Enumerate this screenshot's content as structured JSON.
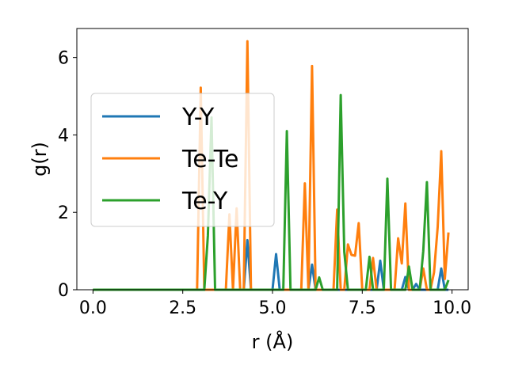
{
  "chart_data": {
    "type": "line",
    "xlabel": "r (Å)",
    "ylabel": "g(r)",
    "xlim": [
      -0.45,
      10.45
    ],
    "ylim": [
      0,
      6.75
    ],
    "xticks": [
      0.0,
      2.5,
      5.0,
      7.5,
      10.0
    ],
    "xtick_labels": [
      "0.0",
      "2.5",
      "5.0",
      "7.5",
      "10.0"
    ],
    "yticks": [
      0,
      2,
      4,
      6
    ],
    "ytick_labels": [
      "0",
      "2",
      "4",
      "6"
    ],
    "grid": false,
    "legend_position": "center-left",
    "series": [
      {
        "name": "Y-Y",
        "color": "#1f77b4",
        "points": [
          [
            0,
            0
          ],
          [
            4.2,
            0
          ],
          [
            4.3,
            1.28
          ],
          [
            4.4,
            0
          ],
          [
            5.0,
            0
          ],
          [
            5.1,
            0.92
          ],
          [
            5.2,
            0
          ],
          [
            6.0,
            0
          ],
          [
            6.1,
            0.65
          ],
          [
            6.2,
            0
          ],
          [
            7.9,
            0
          ],
          [
            8.0,
            0.75
          ],
          [
            8.1,
            0
          ],
          [
            8.6,
            0
          ],
          [
            8.7,
            0.33
          ],
          [
            8.8,
            0
          ],
          [
            8.9,
            0
          ],
          [
            9.0,
            0.15
          ],
          [
            9.1,
            0
          ],
          [
            9.6,
            0
          ],
          [
            9.7,
            0.55
          ],
          [
            9.8,
            0
          ],
          [
            9.9,
            0
          ]
        ]
      },
      {
        "name": "Te-Te",
        "color": "#ff7f0e",
        "points": [
          [
            0,
            0
          ],
          [
            2.9,
            0
          ],
          [
            3.0,
            5.22
          ],
          [
            3.1,
            0
          ],
          [
            3.7,
            0
          ],
          [
            3.8,
            1.95
          ],
          [
            3.9,
            0
          ],
          [
            4.0,
            2.1
          ],
          [
            4.1,
            0
          ],
          [
            4.2,
            0
          ],
          [
            4.3,
            6.42
          ],
          [
            4.4,
            0
          ],
          [
            5.8,
            0
          ],
          [
            5.9,
            2.75
          ],
          [
            6.0,
            0
          ],
          [
            6.1,
            5.78
          ],
          [
            6.2,
            0
          ],
          [
            6.7,
            0
          ],
          [
            6.8,
            2.07
          ],
          [
            6.9,
            0
          ],
          [
            7.0,
            0
          ],
          [
            7.1,
            1.17
          ],
          [
            7.2,
            0.9
          ],
          [
            7.3,
            0.88
          ],
          [
            7.4,
            1.72
          ],
          [
            7.5,
            0
          ],
          [
            7.7,
            0
          ],
          [
            7.8,
            0.82
          ],
          [
            7.9,
            0
          ],
          [
            8.4,
            0
          ],
          [
            8.5,
            1.33
          ],
          [
            8.6,
            0.68
          ],
          [
            8.7,
            2.23
          ],
          [
            8.8,
            0
          ],
          [
            9.1,
            0
          ],
          [
            9.2,
            0.55
          ],
          [
            9.3,
            0
          ],
          [
            9.4,
            0
          ],
          [
            9.5,
            0.45
          ],
          [
            9.6,
            1.62
          ],
          [
            9.7,
            3.58
          ],
          [
            9.8,
            0.28
          ],
          [
            9.9,
            1.48
          ]
        ]
      },
      {
        "name": "Te-Y",
        "color": "#2ca02c",
        "points": [
          [
            0,
            0
          ],
          [
            3.1,
            0
          ],
          [
            3.2,
            1.4
          ],
          [
            3.3,
            4.45
          ],
          [
            3.4,
            0
          ],
          [
            5.3,
            0
          ],
          [
            5.4,
            4.1
          ],
          [
            5.5,
            0
          ],
          [
            6.2,
            0
          ],
          [
            6.3,
            0.32
          ],
          [
            6.4,
            0
          ],
          [
            6.8,
            0
          ],
          [
            6.9,
            5.03
          ],
          [
            7.0,
            0.98
          ],
          [
            7.1,
            0
          ],
          [
            7.6,
            0
          ],
          [
            7.7,
            0.85
          ],
          [
            7.8,
            0
          ],
          [
            8.1,
            0
          ],
          [
            8.2,
            2.87
          ],
          [
            8.3,
            0
          ],
          [
            8.7,
            0
          ],
          [
            8.8,
            0.6
          ],
          [
            8.9,
            0
          ],
          [
            9.1,
            0
          ],
          [
            9.2,
            1.0
          ],
          [
            9.3,
            2.78
          ],
          [
            9.4,
            0
          ],
          [
            9.8,
            0
          ],
          [
            9.9,
            0.25
          ]
        ]
      }
    ]
  }
}
